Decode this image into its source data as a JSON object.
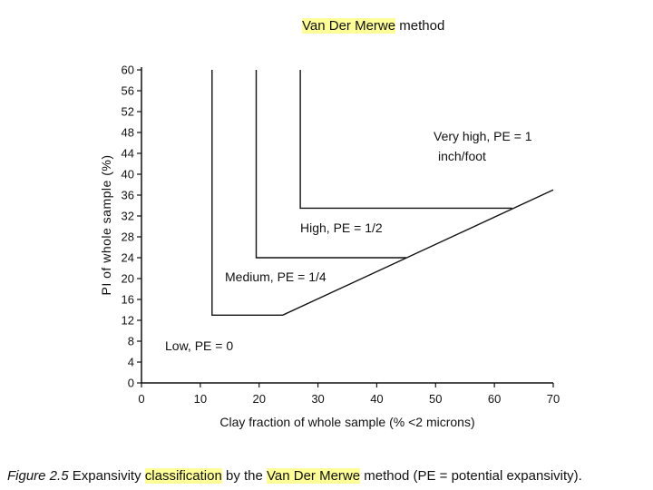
{
  "chart_data": {
    "type": "line",
    "title_parts": [
      "Van Der Merwe",
      " method"
    ],
    "xlabel": "Clay fraction of whole sample (% <2 microns)",
    "ylabel": "PI of whole sample (%)",
    "xlim": [
      0,
      70
    ],
    "ylim": [
      0,
      60
    ],
    "x_ticks": [
      0,
      10,
      20,
      30,
      40,
      50,
      60,
      70
    ],
    "y_ticks": [
      0,
      4,
      8,
      12,
      16,
      20,
      24,
      28,
      32,
      36,
      40,
      44,
      48,
      52,
      56,
      60
    ],
    "grid": false,
    "series": [
      {
        "points": [
          [
            12,
            60
          ],
          [
            12,
            13
          ],
          [
            24,
            13
          ],
          [
            70,
            37
          ]
        ]
      },
      {
        "points": [
          [
            19.5,
            60
          ],
          [
            19.5,
            24
          ],
          [
            45,
            24
          ]
        ]
      },
      {
        "points": [
          [
            27,
            60
          ],
          [
            27,
            33.5
          ],
          [
            63,
            33.5
          ]
        ]
      }
    ],
    "regions": [
      {
        "label": "Low, PE = 0"
      },
      {
        "label": "Medium, PE = 1/4"
      },
      {
        "label": "High, PE = 1/2"
      },
      {
        "label_lines": [
          "Very high, PE = 1",
          "inch/foot"
        ]
      }
    ]
  },
  "caption": {
    "figure_no": "Figure 2.5",
    "parts": [
      "Expansivity ",
      "classification",
      " by the ",
      "Van Der Merwe",
      " method (PE = potential expansivity)."
    ]
  }
}
